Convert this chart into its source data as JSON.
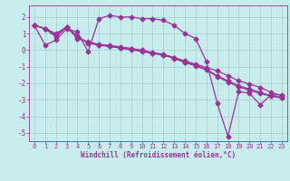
{
  "xlabel": "Windchill (Refroidissement éolien,°C)",
  "bg_color": "#c8ecec",
  "line_color": "#993399",
  "grid_color": "#aad4d4",
  "axis_color": "#993399",
  "xlim": [
    -0.5,
    23.5
  ],
  "ylim": [
    -5.5,
    2.7
  ],
  "xticks": [
    0,
    1,
    2,
    3,
    4,
    5,
    6,
    7,
    8,
    9,
    10,
    11,
    12,
    13,
    14,
    15,
    16,
    17,
    18,
    19,
    20,
    21,
    22,
    23
  ],
  "yticks": [
    -5,
    -4,
    -3,
    -2,
    -1,
    0,
    1,
    2
  ],
  "series": [
    {
      "x": [
        0,
        1,
        2,
        3,
        4,
        5,
        6,
        7,
        8,
        9,
        10,
        11,
        12,
        13,
        14,
        15,
        16,
        17,
        18,
        19,
        20,
        21,
        22,
        23
      ],
      "y": [
        1.5,
        0.3,
        0.6,
        1.3,
        1.1,
        -0.1,
        1.9,
        2.1,
        2.0,
        2.0,
        1.9,
        1.9,
        1.8,
        1.5,
        1.0,
        0.7,
        -0.7,
        -3.2,
        -5.2,
        -2.5,
        -2.6,
        -3.3,
        -2.7,
        -2.7
      ]
    },
    {
      "x": [
        0,
        1,
        2,
        3,
        4,
        5,
        6,
        7,
        8,
        9,
        10,
        11,
        12,
        13,
        14,
        15,
        16,
        17,
        18,
        19,
        20,
        21,
        22,
        23
      ],
      "y": [
        1.5,
        1.3,
        0.8,
        1.4,
        0.7,
        0.5,
        0.35,
        0.28,
        0.2,
        0.1,
        0.0,
        -0.15,
        -0.25,
        -0.45,
        -0.65,
        -0.85,
        -1.05,
        -1.25,
        -1.55,
        -1.85,
        -2.05,
        -2.25,
        -2.55,
        -2.75
      ]
    },
    {
      "x": [
        0,
        1,
        2,
        3,
        4,
        5,
        6,
        7,
        8,
        9,
        10,
        11,
        12,
        13,
        14,
        15,
        16,
        17,
        18,
        19,
        20,
        21,
        22,
        23
      ],
      "y": [
        1.5,
        1.3,
        0.9,
        1.4,
        0.8,
        0.45,
        0.32,
        0.25,
        0.15,
        0.05,
        -0.05,
        -0.18,
        -0.28,
        -0.48,
        -0.72,
        -0.92,
        -1.15,
        -1.55,
        -1.85,
        -2.15,
        -2.35,
        -2.55,
        -2.75,
        -2.85
      ]
    },
    {
      "x": [
        0,
        1,
        2,
        3,
        4,
        5,
        6,
        7,
        8,
        9,
        10,
        11,
        12,
        13,
        14,
        15,
        16,
        17,
        18,
        19,
        20,
        21,
        22,
        23
      ],
      "y": [
        1.5,
        1.3,
        1.0,
        1.4,
        0.85,
        0.42,
        0.3,
        0.22,
        0.12,
        0.02,
        -0.08,
        -0.2,
        -0.3,
        -0.5,
        -0.75,
        -0.95,
        -1.2,
        -1.6,
        -1.92,
        -2.22,
        -2.42,
        -2.62,
        -2.78,
        -2.88
      ]
    }
  ],
  "marker": "D",
  "markersize": 2.5,
  "linewidth": 0.9,
  "xlabel_fontsize": 5.5,
  "tick_fontsize": 5.0
}
